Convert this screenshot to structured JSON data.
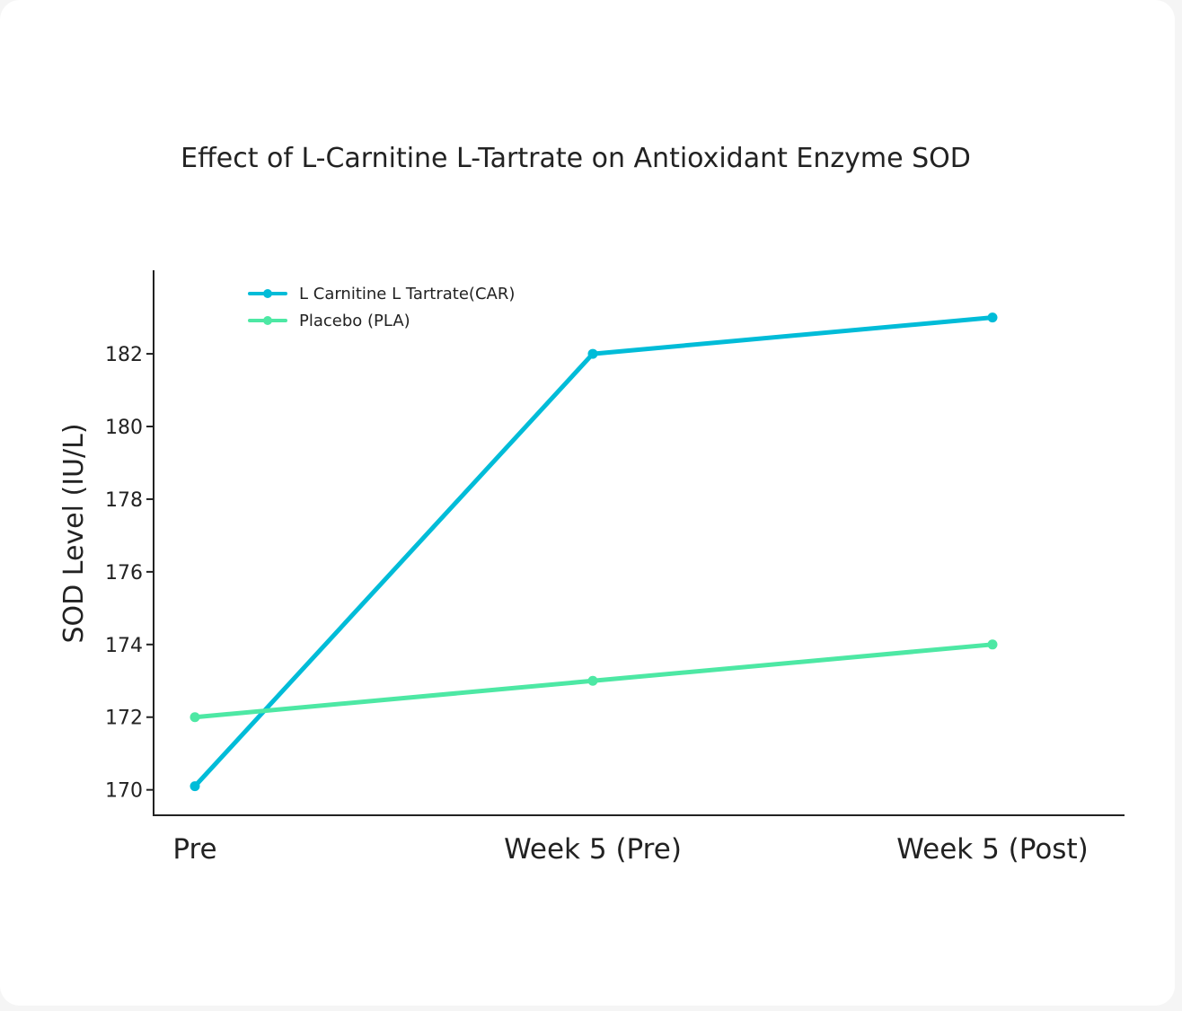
{
  "chart_data": {
    "type": "line",
    "title": "Effect of L-Carnitine L-Tartrate on Antioxidant Enzyme SOD",
    "xlabel": "",
    "ylabel": "SOD Level (IU/L)",
    "categories": [
      "Pre",
      "Week 5 (Pre)",
      "Week 5 (Post)"
    ],
    "yticks": [
      170,
      172,
      174,
      176,
      178,
      180,
      182
    ],
    "ylim": [
      169.3,
      184.3
    ],
    "grid": false,
    "legend_position": "top-left",
    "series": [
      {
        "name": "L Carnitine L Tartrate(CAR)",
        "color": "#00bcd8",
        "values": [
          170.1,
          182.0,
          183.0
        ]
      },
      {
        "name": "Placebo (PLA)",
        "color": "#4de8a4",
        "values": [
          172.0,
          173.0,
          174.0
        ]
      }
    ]
  }
}
